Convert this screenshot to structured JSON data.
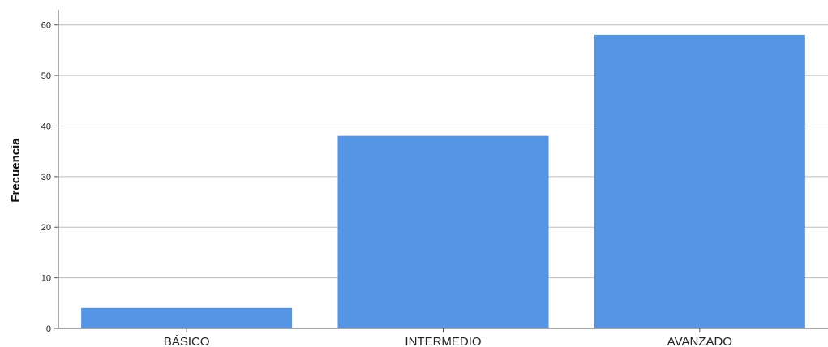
{
  "chart_data": {
    "type": "bar",
    "title": "",
    "xlabel": "",
    "ylabel": "Frecuencia",
    "categories": [
      "BÁSICO",
      "INTERMEDIO",
      "AVANZADO"
    ],
    "values": [
      4,
      38,
      58
    ],
    "ylim": [
      0,
      63
    ],
    "yticks": [
      0,
      10,
      20,
      30,
      40,
      50,
      60
    ],
    "grid": true,
    "legend": "none",
    "bar_color": "#5595E5",
    "grid_color": "#bdbdbd",
    "axis_color": "#555555"
  }
}
